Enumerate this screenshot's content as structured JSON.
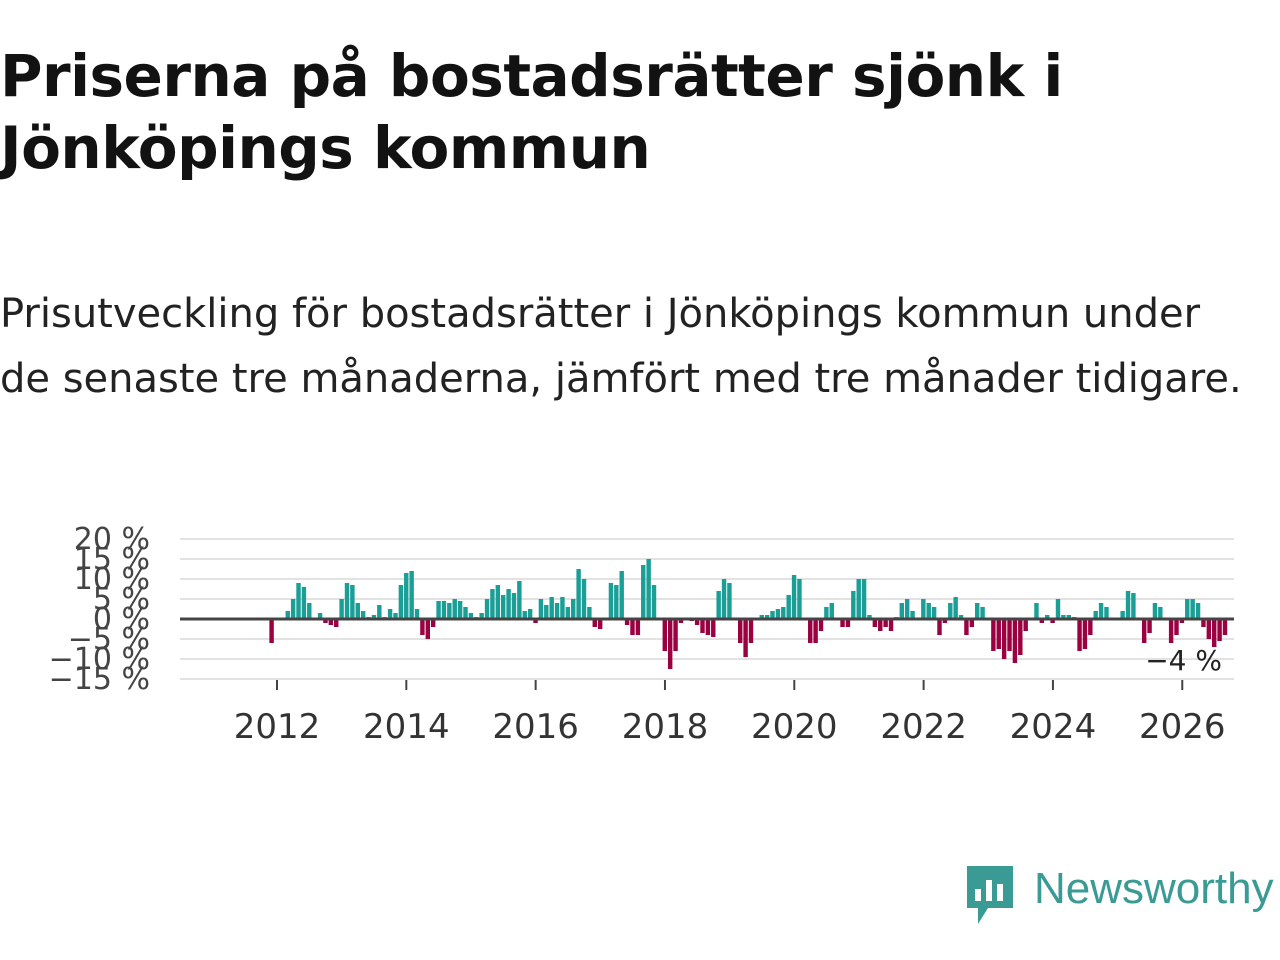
{
  "title": "Priserna på bostadsrätter sjönk i Jönköpings kommun",
  "subtitle": "Prisutveckling för bostadsrätter i Jönköpings kommun under de senaste tre månaderna, jämfört med tre månader tidigare.",
  "brand": {
    "name": "Newsworthy",
    "icon": "newsworthy-logo-icon",
    "color": "#3a9b94"
  },
  "chart_data": {
    "type": "bar",
    "title": "",
    "xlabel": "",
    "ylabel": "",
    "ylim": [
      -15,
      20
    ],
    "y_ticks": [
      -15,
      -10,
      -5,
      0,
      5,
      10,
      15,
      20
    ],
    "y_tick_labels": [
      "−15 %",
      "−10 %",
      "−5 %",
      "0 %",
      "5 %",
      "10 %",
      "15 %",
      "20 %"
    ],
    "x_start": 2011.25,
    "x_step": 0.0833,
    "x_range": [
      2010.5,
      2026.8
    ],
    "x_ticks": [
      2012,
      2014,
      2016,
      2018,
      2020,
      2022,
      2024,
      2026
    ],
    "x_tick_labels": [
      "2012",
      "2014",
      "2016",
      "2018",
      "2020",
      "2022",
      "2024",
      "2026"
    ],
    "positive_color": "#1a9e96",
    "negative_color": "#9b0040",
    "last_value_label": "−4 %",
    "values": [
      0,
      0,
      0,
      0,
      0,
      0,
      0,
      0,
      -6,
      0,
      0,
      2,
      5,
      9,
      8,
      4,
      0,
      1.5,
      -1,
      -1.5,
      -2,
      5,
      9,
      8.5,
      4,
      2,
      0.5,
      1,
      3.5,
      0.5,
      2.5,
      1.5,
      8.5,
      11.5,
      12,
      2.5,
      -4,
      -5,
      -2,
      4.5,
      4.5,
      4,
      5,
      4.5,
      3,
      1.5,
      0.5,
      1.5,
      5,
      7.5,
      8.5,
      6,
      7.5,
      6.5,
      9.5,
      2,
      2.5,
      -1,
      5,
      3.5,
      5.5,
      4,
      5.5,
      3,
      5,
      12.5,
      10,
      3,
      -2,
      -2.5,
      0,
      9,
      8.5,
      12,
      -1.5,
      -4,
      -4,
      13.5,
      15,
      8.5,
      0,
      -8,
      -12.5,
      -8,
      -1,
      0,
      -0.5,
      -1.5,
      -3.5,
      -4,
      -4.5,
      7,
      10,
      9,
      0,
      -6,
      -9.5,
      -6,
      0,
      1,
      1,
      2,
      2.5,
      3,
      6,
      11,
      10,
      0,
      -6,
      -6,
      -3,
      3,
      4,
      0,
      -2,
      -2,
      7,
      10,
      10,
      1,
      -2,
      -3,
      -2,
      -3,
      0.5,
      4,
      5,
      2,
      0,
      5,
      4,
      3,
      -4,
      -1,
      4,
      5.5,
      1,
      -4,
      -2,
      4,
      3,
      0,
      -8,
      -7.5,
      -10,
      -8,
      -11,
      -9,
      -3,
      0,
      4,
      -1,
      1,
      -1,
      5,
      1,
      1,
      0.5,
      -8,
      -7.5,
      -4,
      2,
      4,
      3,
      0,
      0,
      2,
      7,
      6.5,
      0,
      -6,
      -3.5,
      4,
      3,
      0,
      -6,
      -4,
      -1,
      5,
      5,
      4,
      -2,
      -5,
      -7,
      -5.5,
      -4
    ]
  }
}
